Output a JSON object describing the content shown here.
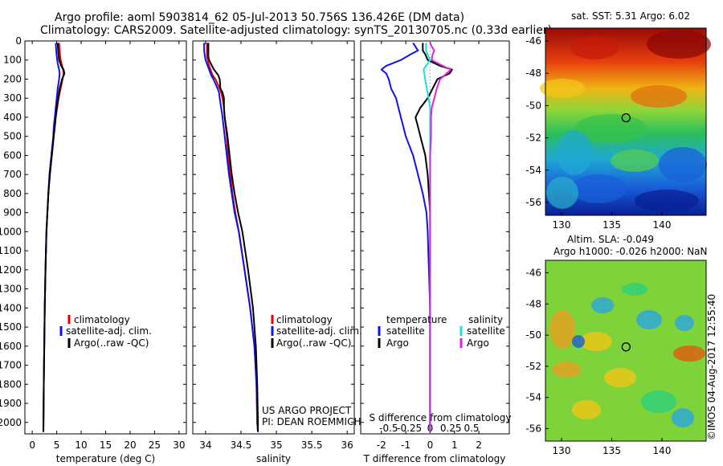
{
  "header": {
    "title_line1": "Argo profile: aoml 5903814_62 05-Jul-2013 50.756S 136.426E (DM data)",
    "title_line2": "Climatology: CARS2009. Satellite-adjusted climatology: synTS_20130705.nc (0.33d earlier)"
  },
  "depth_ticks": [
    "0",
    "100",
    "200",
    "300",
    "400",
    "500",
    "600",
    "700",
    "800",
    "900",
    "1000",
    "1100",
    "1200",
    "1300",
    "1400",
    "1500",
    "1600",
    "1700",
    "1800",
    "1900",
    "2000"
  ],
  "legend": {
    "climatology": "climatology",
    "satellite": "satellite-adj. clim.",
    "argo": "Argo(..raw -QC)",
    "diff_temperature": "temperature",
    "diff_salinity": "salinity",
    "diff_satellite": "satellite",
    "diff_argo": "Argo"
  },
  "credits": {
    "project": "US ARGO PROJECT",
    "pi": "PI: DEAN ROEMMICH",
    "imos": "©IMOS 04-Aug-2017 12:55:40"
  },
  "colors": {
    "climatology": "#dd0000",
    "satellite": "#1010ee",
    "argo": "#000000",
    "sat_salinity": "#22dddd",
    "argo_salinity": "#dd22dd"
  },
  "chart_data": [
    {
      "type": "line",
      "title": "",
      "xlabel": "temperature (deg C)",
      "ylabel": "",
      "xlim": [
        -1.5,
        31.5
      ],
      "ylim": [
        2060,
        0
      ],
      "xticks": [
        "0",
        "5",
        "10",
        "15",
        "20",
        "25",
        "30"
      ],
      "xtick_values": [
        0,
        5,
        10,
        15,
        20,
        25,
        30
      ],
      "depth": [
        10,
        50,
        80,
        100,
        130,
        150,
        170,
        200,
        250,
        300,
        350,
        400,
        450,
        500,
        550,
        600,
        650,
        700,
        800,
        900,
        1000,
        1200,
        1400,
        1600,
        1800,
        2000,
        2050
      ],
      "series": [
        {
          "name": "climatology",
          "values": [
            5.5,
            5.6,
            5.7,
            5.8,
            6.1,
            6.3,
            6.4,
            6.2,
            5.8,
            5.4,
            5.1,
            4.8,
            4.6,
            4.4,
            4.2,
            4.0,
            3.8,
            3.6,
            3.3,
            3.1,
            2.9,
            2.7,
            2.55,
            2.45,
            2.35,
            2.3,
            2.28
          ]
        },
        {
          "name": "satellite-adj. clim.",
          "values": [
            4.8,
            4.9,
            5.0,
            5.1,
            5.3,
            5.5,
            5.6,
            5.5,
            5.2,
            5.0,
            4.8,
            4.6,
            4.4,
            4.3,
            4.1,
            3.9,
            3.7,
            3.5,
            3.3,
            3.1,
            2.9,
            2.7,
            2.55,
            2.45,
            2.35,
            2.3,
            2.28
          ]
        },
        {
          "name": "Argo(..raw -QC)",
          "values": [
            5.2,
            5.3,
            5.4,
            5.5,
            5.9,
            6.4,
            6.6,
            6.1,
            5.6,
            5.3,
            5.0,
            4.8,
            4.6,
            4.4,
            4.2,
            4.0,
            3.8,
            3.6,
            3.3,
            3.1,
            2.9,
            2.7,
            2.55,
            2.45,
            2.35,
            2.3,
            2.28
          ]
        }
      ]
    },
    {
      "type": "line",
      "title": "",
      "xlabel": "salinity",
      "ylabel": "",
      "xlim": [
        33.82,
        36.1
      ],
      "ylim": [
        2060,
        0
      ],
      "xticks": [
        "34",
        "34.5",
        "35",
        "35.5",
        "36"
      ],
      "xtick_values": [
        34,
        34.5,
        35,
        35.5,
        36
      ],
      "depth": [
        10,
        50,
        80,
        100,
        130,
        150,
        180,
        200,
        250,
        270,
        300,
        350,
        400,
        500,
        600,
        700,
        800,
        900,
        1000,
        1200,
        1400,
        1600,
        1800,
        2000,
        2050
      ],
      "series": [
        {
          "name": "climatology",
          "values": [
            34.02,
            34.02,
            34.02,
            34.03,
            34.05,
            34.07,
            34.1,
            34.14,
            34.2,
            34.22,
            34.24,
            34.26,
            34.27,
            34.3,
            34.32,
            34.35,
            34.38,
            34.42,
            34.47,
            34.55,
            34.63,
            34.69,
            34.72,
            34.73,
            34.74
          ]
        },
        {
          "name": "satellite-adj. clim.",
          "values": [
            33.98,
            33.98,
            33.99,
            34.0,
            34.03,
            34.05,
            34.08,
            34.11,
            34.17,
            34.19,
            34.2,
            34.22,
            34.24,
            34.27,
            34.3,
            34.33,
            34.37,
            34.41,
            34.47,
            34.55,
            34.63,
            34.69,
            34.72,
            34.73,
            34.74
          ]
        },
        {
          "name": "Argo(..raw -QC)",
          "values": [
            34.04,
            34.04,
            34.04,
            34.05,
            34.09,
            34.12,
            34.18,
            34.2,
            34.21,
            34.24,
            34.26,
            34.26,
            34.27,
            34.31,
            34.34,
            34.37,
            34.41,
            34.46,
            34.52,
            34.6,
            34.67,
            34.71,
            34.73,
            34.74,
            34.74
          ]
        }
      ]
    },
    {
      "type": "line",
      "title": "",
      "xlabel": "T difference from climatology",
      "x2label": "S difference from climatology",
      "ylabel": "",
      "xlim": [
        -2.85,
        3.25
      ],
      "ylim": [
        2060,
        0
      ],
      "xticks": [
        "-2",
        "-1",
        "0",
        "1",
        "2"
      ],
      "xtick_values": [
        -2,
        -1,
        0,
        1,
        2
      ],
      "x2ticks": [
        "-0.5",
        "-0.25",
        "0",
        "0.25",
        "0.5"
      ],
      "x2tick_values": [
        -0.5,
        -0.25,
        0,
        0.25,
        0.5
      ],
      "depth": [
        10,
        30,
        50,
        70,
        100,
        130,
        150,
        170,
        200,
        250,
        300,
        350,
        400,
        450,
        500,
        600,
        700,
        800,
        900,
        1000,
        1200,
        1400,
        1600,
        1800,
        2000,
        2050
      ],
      "series": [
        {
          "name": "temperature satellite",
          "values": [
            -0.7,
            -0.6,
            -0.5,
            -0.8,
            -1.2,
            -1.8,
            -2.0,
            -1.8,
            -1.7,
            -1.6,
            -1.4,
            -1.3,
            -1.2,
            -1.1,
            -1.0,
            -0.7,
            -0.5,
            -0.3,
            -0.15,
            -0.1,
            -0.05,
            0,
            0,
            0,
            0,
            0
          ]
        },
        {
          "name": "temperature Argo",
          "values": [
            -0.3,
            -0.3,
            -0.3,
            -0.2,
            -0.1,
            0.4,
            0.9,
            0.8,
            0.3,
            0.1,
            -0.1,
            -0.4,
            -0.6,
            -0.5,
            -0.4,
            -0.2,
            -0.1,
            -0.05,
            0,
            0,
            0,
            0,
            0,
            0,
            0,
            0
          ]
        },
        {
          "name": "salinity satellite",
          "values": [
            -0.05,
            -0.05,
            -0.05,
            -0.03,
            0,
            -0.05,
            -0.08,
            -0.07,
            -0.06,
            -0.04,
            -0.02,
            0,
            0,
            0,
            0,
            0,
            0,
            0,
            0,
            0,
            0,
            0,
            0,
            0,
            0,
            0
          ]
        },
        {
          "name": "salinity Argo",
          "values": [
            0,
            0.02,
            0.05,
            0.03,
            0.02,
            0.15,
            0.25,
            0.2,
            0.12,
            0.08,
            0.05,
            0.02,
            0.01,
            0.01,
            0.01,
            0,
            0,
            0,
            0,
            0,
            0,
            0,
            0,
            0,
            0,
            0
          ]
        }
      ]
    },
    {
      "type": "heatmap",
      "title": "sat. SST: 5.31  Argo: 6.02",
      "xticks": [
        "130",
        "135",
        "140"
      ],
      "xtick_values": [
        130,
        135,
        140
      ],
      "yticks": [
        "-46",
        "-48",
        "-50",
        "-52",
        "-54",
        "-56"
      ],
      "ytick_values": [
        -46,
        -48,
        -50,
        -52,
        -54,
        -56
      ],
      "xlim": [
        128.4,
        144.4
      ],
      "ylim": [
        -45.2,
        -56.8
      ],
      "marker": {
        "lon": 136.426,
        "lat": -50.756
      }
    },
    {
      "type": "heatmap",
      "title_line1": "Altim. SLA: -0.049",
      "title_line2": "Argo h1000: -0.026 h2000: NaN",
      "xticks": [
        "130",
        "135",
        "140"
      ],
      "xtick_values": [
        130,
        135,
        140
      ],
      "yticks": [
        "-46",
        "-48",
        "-50",
        "-52",
        "-54",
        "-56"
      ],
      "ytick_values": [
        -46,
        -48,
        -50,
        -52,
        -54,
        -56
      ],
      "xlim": [
        128.4,
        144.4
      ],
      "ylim": [
        -45.2,
        -56.8
      ],
      "marker": {
        "lon": 136.426,
        "lat": -50.756
      }
    }
  ]
}
